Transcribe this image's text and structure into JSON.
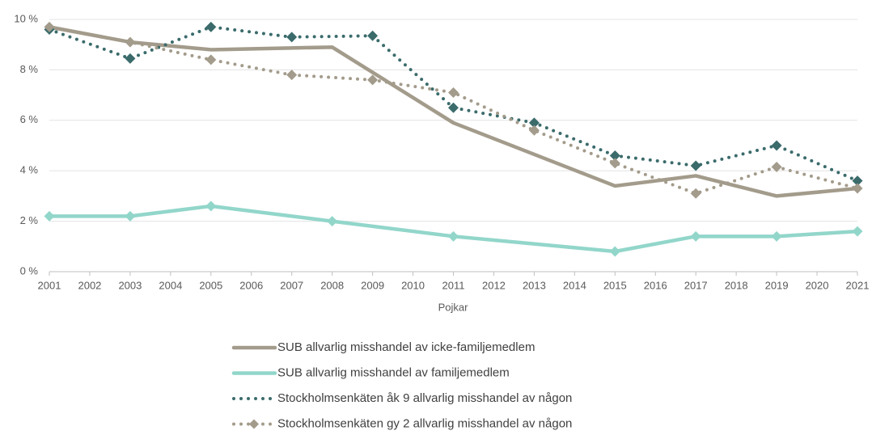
{
  "chart_data": {
    "type": "line",
    "x_label": "Pojkar",
    "xlim": [
      2001,
      2021
    ],
    "xticks": [
      2001,
      2002,
      2003,
      2004,
      2005,
      2006,
      2007,
      2008,
      2009,
      2010,
      2011,
      2012,
      2013,
      2014,
      2015,
      2016,
      2017,
      2018,
      2019,
      2020,
      2021
    ],
    "ylim": [
      0,
      10
    ],
    "yticks": [
      {
        "value": 0,
        "label": "0 %"
      },
      {
        "value": 2,
        "label": "2 %"
      },
      {
        "value": 4,
        "label": "4 %"
      },
      {
        "value": 6,
        "label": "6 %"
      },
      {
        "value": 8,
        "label": "8 %"
      },
      {
        "value": 10,
        "label": "10 %"
      }
    ],
    "grid": true,
    "legend": "bottom",
    "series": [
      {
        "name": "SUB allvarlig misshandel av icke-familjemedlem",
        "color": "#a39b8b",
        "dash": "solid",
        "markers": false,
        "x": [
          2001,
          2003,
          2005,
          2008,
          2011,
          2015,
          2017,
          2019,
          2021
        ],
        "values": [
          9.7,
          9.1,
          8.8,
          8.9,
          5.9,
          3.4,
          3.8,
          3.0,
          3.3
        ]
      },
      {
        "name": "SUB allvarlig misshandel av familjemedlem",
        "color": "#92d6ca",
        "dash": "solid",
        "markers": true,
        "x": [
          2001,
          2003,
          2005,
          2008,
          2011,
          2015,
          2017,
          2019,
          2021
        ],
        "values": [
          2.2,
          2.2,
          2.6,
          2.0,
          1.4,
          0.8,
          1.4,
          1.4,
          1.6
        ]
      },
      {
        "name": "Stockholmsenkäten åk 9 allvarlig misshandel av någon",
        "color": "#3b6b6b",
        "dash": "dotted",
        "markers": true,
        "x": [
          2001,
          2003,
          2005,
          2007,
          2009,
          2011,
          2013,
          2015,
          2017,
          2019,
          2021
        ],
        "values": [
          9.6,
          8.45,
          9.7,
          9.3,
          9.35,
          6.5,
          5.9,
          4.6,
          4.2,
          5.0,
          3.6
        ]
      },
      {
        "name": "Stockholmsenkäten gy 2 allvarlig misshandel av någon",
        "color": "#a39b8b",
        "dash": "dotted",
        "markers": true,
        "x": [
          2001,
          2003,
          2005,
          2007,
          2009,
          2011,
          2013,
          2015,
          2017,
          2019,
          2021
        ],
        "values": [
          9.7,
          9.1,
          8.4,
          7.8,
          7.6,
          7.1,
          5.6,
          4.3,
          3.1,
          4.15,
          3.3
        ]
      }
    ]
  }
}
